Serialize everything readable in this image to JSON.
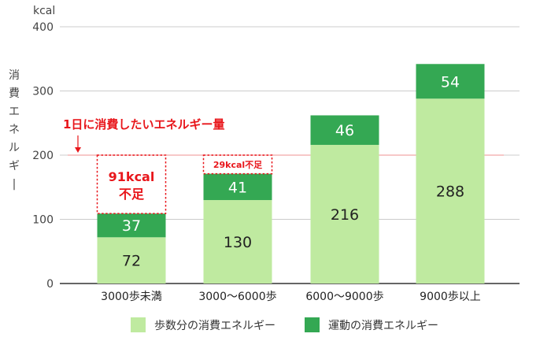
{
  "chart_data": {
    "type": "bar",
    "stacked": true,
    "unit": "kcal",
    "ylabel": "消費エネルギー",
    "yticks": [
      0,
      100,
      200,
      300,
      400
    ],
    "ylim": [
      0,
      400
    ],
    "grid": true,
    "legend_position": "bottom",
    "categories": [
      "3000歩未満",
      "3000〜6000歩",
      "6000〜9000歩",
      "9000歩以上"
    ],
    "series": [
      {
        "name": "歩数分の消費エネルギー",
        "values": [
          72,
          130,
          216,
          288
        ],
        "color": "#bfeaa0",
        "label_color": "#222222"
      },
      {
        "name": "運動の消費エネルギー",
        "values": [
          37,
          41,
          46,
          54
        ],
        "color": "#34a853",
        "label_color": "#ffffff"
      }
    ],
    "target": {
      "value": 200,
      "label": "1日に消費したいエネルギー量",
      "color": "#f2a7a7"
    },
    "shortfalls": [
      {
        "category_index": 0,
        "label_line1": "91kcal",
        "label_line2": "不足",
        "amount": 91
      },
      {
        "category_index": 1,
        "label_line1": "29kcal不足",
        "label_line2": "",
        "amount": 29
      }
    ],
    "colors": {
      "accent_red": "#e8161b",
      "grid": "#cccccc",
      "axis": "#333333"
    }
  }
}
